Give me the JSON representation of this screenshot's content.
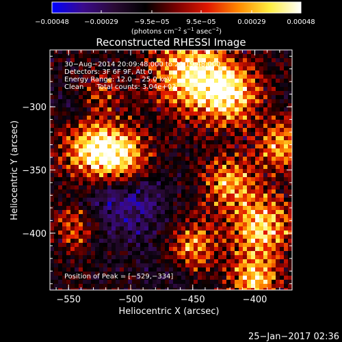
{
  "chart_data": {
    "type": "heatmap",
    "title": "Reconstructed RHESSI Image",
    "xlabel": "Heliocentric X (arcsec)",
    "ylabel": "Heliocentric Y (arcsec)",
    "xlim": [
      -565,
      -370
    ],
    "ylim": [
      -445,
      -255
    ],
    "xticks": [
      -550,
      -500,
      -450,
      -400
    ],
    "xtick_labels": [
      "−550",
      "−500",
      "−450",
      "−400"
    ],
    "yticks": [
      -300,
      -350,
      -400
    ],
    "ytick_labels": [
      "−300",
      "−350",
      "−400"
    ],
    "colorbar": {
      "range": [
        -0.00048,
        0.00048
      ],
      "ticks": [
        -0.00048,
        -0.00029,
        -9.5e-05,
        9.5e-05,
        0.00029,
        0.00048
      ],
      "tick_labels": [
        "−0.00048",
        "−0.00029",
        "−9.5e−05",
        "9.5e−05",
        "0.00029",
        "0.00048"
      ],
      "units_main": "(photons cm",
      "units_exp1": "−2",
      "units_mid": " s",
      "units_exp2": "−1",
      "units_end": " asec",
      "units_exp3": "−2",
      "units_close": ")",
      "colors": [
        "#0000ff",
        "#3a0a8c",
        "#2a0a35",
        "#000000",
        "#7a0000",
        "#e01800",
        "#ff8a00",
        "#ffee40",
        "#ffffff"
      ]
    },
    "annotations": [
      "30−Aug−2014 20:09:48.000 to 20:19:48.000",
      "Detectors: 3F 6F 9F, Att 0",
      "Energy Range: 12.0 − 25.0 keV",
      "Clean      Total counts: 3.04e+03"
    ],
    "peak_label": "Position of Peak = [−529,−334]",
    "peak": [
      -529,
      -334
    ],
    "hotspots": [
      {
        "x": -450,
        "y": -275,
        "v": 0.00048,
        "r": 28
      },
      {
        "x": -420,
        "y": -290,
        "v": 0.0004,
        "r": 22
      },
      {
        "x": -529,
        "y": -334,
        "v": 0.00048,
        "r": 22
      },
      {
        "x": -505,
        "y": -340,
        "v": 0.00036,
        "r": 20
      },
      {
        "x": -395,
        "y": -395,
        "v": 0.00038,
        "r": 24
      },
      {
        "x": -420,
        "y": -360,
        "v": 0.0003,
        "r": 20
      },
      {
        "x": -380,
        "y": -330,
        "v": 0.0003,
        "r": 18
      },
      {
        "x": -450,
        "y": -410,
        "v": 0.00026,
        "r": 18
      },
      {
        "x": -400,
        "y": -435,
        "v": 0.00036,
        "r": 18
      },
      {
        "x": -545,
        "y": -395,
        "v": 0.00018,
        "r": 16
      },
      {
        "x": -525,
        "y": -290,
        "v": 0.00012,
        "r": 16
      }
    ],
    "coldspots": [
      {
        "x": -505,
        "y": -375,
        "v": -0.00034,
        "r": 32
      },
      {
        "x": -540,
        "y": -300,
        "v": -0.0002,
        "r": 18
      },
      {
        "x": -470,
        "y": -435,
        "v": -0.00018,
        "r": 20
      }
    ]
  },
  "footer_timestamp": "25−Jan−2017 02:36"
}
